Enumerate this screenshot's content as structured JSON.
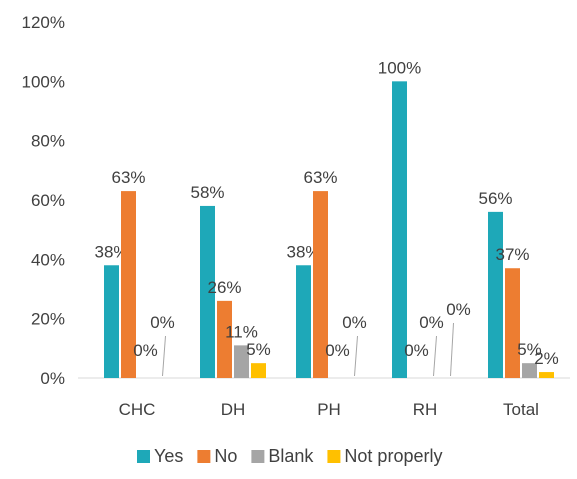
{
  "chart_data": {
    "type": "bar",
    "categories": [
      "CHC",
      "DH",
      "PH",
      "RH",
      "Total"
    ],
    "series": [
      {
        "name": "Yes",
        "color": "#1ea8b8",
        "values": [
          38,
          58,
          38,
          100,
          56
        ],
        "labels": [
          "38%",
          "58%",
          "38%",
          "100%",
          "56%"
        ]
      },
      {
        "name": "No",
        "color": "#ed7d31",
        "values": [
          63,
          26,
          63,
          0,
          37
        ],
        "labels": [
          "63%",
          "26%",
          "63%",
          "0%",
          "37%"
        ]
      },
      {
        "name": "Blank",
        "color": "#a5a5a5",
        "values": [
          0,
          11,
          0,
          0,
          5
        ],
        "labels": [
          "0%",
          "11%",
          "0%",
          "0%",
          "5%"
        ]
      },
      {
        "name": "Not properly",
        "color": "#ffc000",
        "values": [
          0,
          5,
          0,
          0,
          2
        ],
        "labels": [
          "0%",
          "5%",
          "0%",
          "0%",
          "2%"
        ]
      }
    ],
    "ylim": [
      0,
      120
    ],
    "yticks": [
      "0%",
      "20%",
      "40%",
      "60%",
      "80%",
      "100%",
      "120%"
    ],
    "grid": false,
    "legend": "bottom"
  }
}
